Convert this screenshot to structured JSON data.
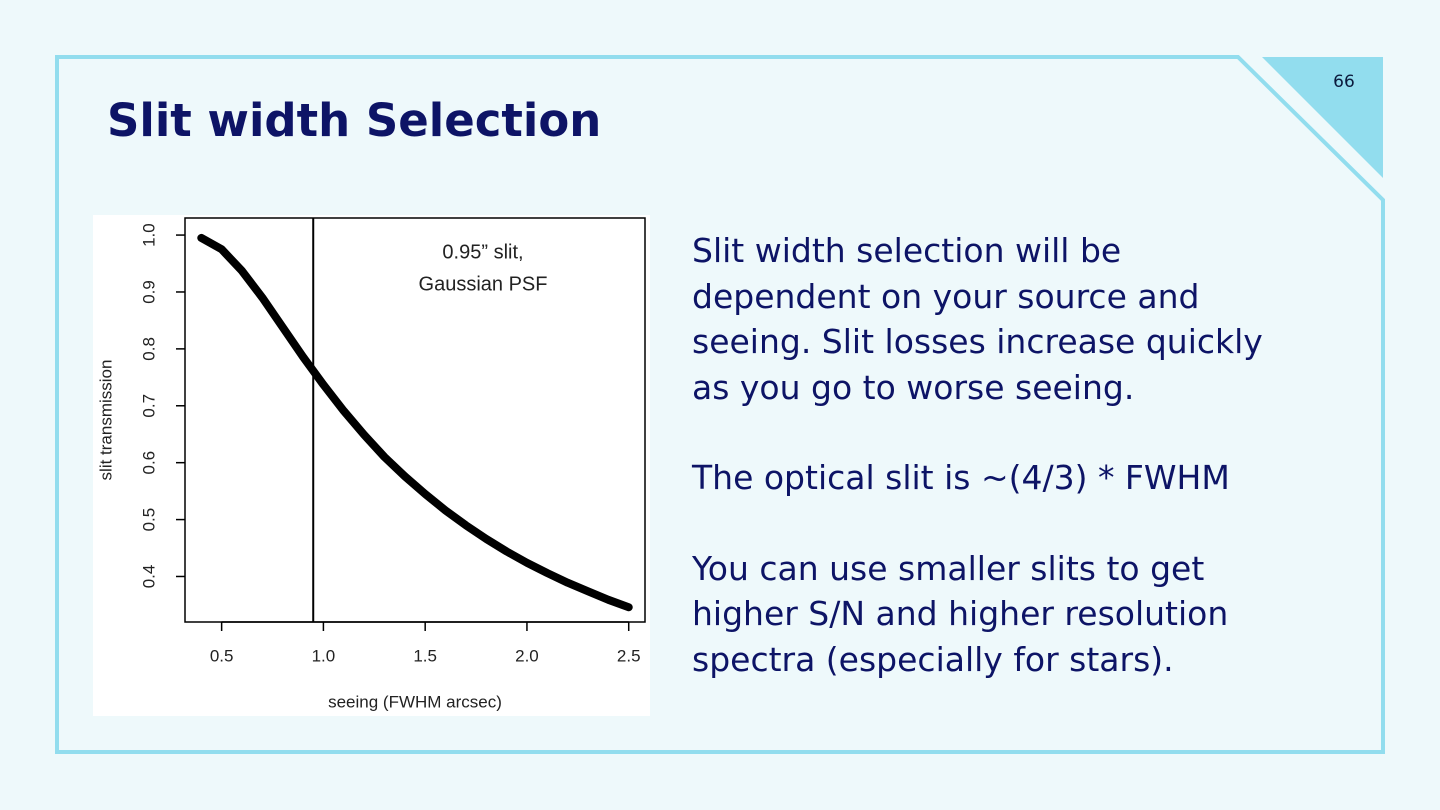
{
  "page_number": "66",
  "title": "Slit width Selection",
  "body": {
    "paragraphs": [
      [
        "Slit width selection will be",
        "dependent on your source and",
        "seeing. Slit losses increase quickly",
        "as you go to worse seeing."
      ],
      [
        "The optical slit is ~(4/3) * FWHM"
      ],
      [
        "You can use smaller slits to get",
        "higher S/N and higher resolution",
        "spectra (especially for stars)."
      ]
    ]
  },
  "chart_data": {
    "type": "line",
    "x_label": "seeing (FWHM arcsec)",
    "y_label": "slit transmission",
    "annotation": [
      "0.95” slit,",
      "Gaussian PSF"
    ],
    "x": [
      0.4,
      0.5,
      0.6,
      0.7,
      0.8,
      0.9,
      1.0,
      1.1,
      1.2,
      1.3,
      1.4,
      1.5,
      1.6,
      1.7,
      1.8,
      1.9,
      2.0,
      2.1,
      2.2,
      2.3,
      2.4,
      2.5
    ],
    "values": [
      0.995,
      0.975,
      0.937,
      0.89,
      0.838,
      0.786,
      0.737,
      0.691,
      0.649,
      0.61,
      0.576,
      0.545,
      0.516,
      0.49,
      0.466,
      0.444,
      0.424,
      0.406,
      0.389,
      0.374,
      0.359,
      0.346
    ],
    "color": "#000000",
    "vline": 0.95,
    "xlim": [
      0.32,
      2.58
    ],
    "ylim": [
      0.32,
      1.03
    ],
    "xticks": [
      0.5,
      {
        "value": 1,
        "label": "1.0"
      },
      1.5,
      {
        "value": 2,
        "label": "2.0"
      },
      2.5
    ],
    "yticks": [
      0.4,
      0.5,
      0.6,
      0.7,
      0.8,
      0.9,
      {
        "value": 1,
        "label": "1.0"
      }
    ]
  }
}
